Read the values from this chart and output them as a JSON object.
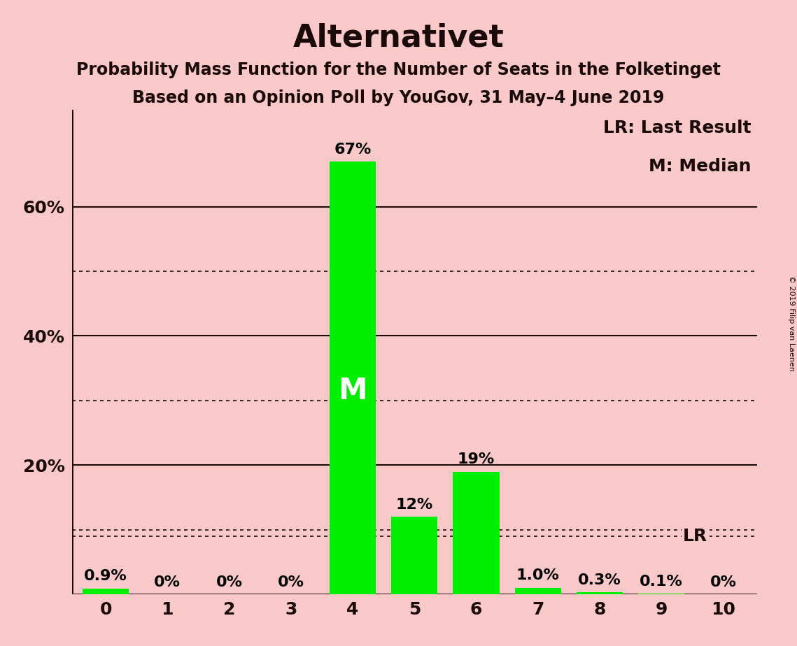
{
  "title": "Alternativet",
  "subtitle1": "Probability Mass Function for the Number of Seats in the Folketinget",
  "subtitle2": "Based on an Opinion Poll by YouGov, 31 May–4 June 2019",
  "watermark": "© 2019 Filip van Laenen",
  "categories": [
    0,
    1,
    2,
    3,
    4,
    5,
    6,
    7,
    8,
    9,
    10
  ],
  "values": [
    0.9,
    0.0,
    0.0,
    0.0,
    67.0,
    12.0,
    19.0,
    1.0,
    0.3,
    0.1,
    0.0
  ],
  "labels": [
    "0.9%",
    "0%",
    "0%",
    "0%",
    "67%",
    "12%",
    "19%",
    "1.0%",
    "0.3%",
    "0.1%",
    "0%"
  ],
  "bar_color": "#00EE00",
  "background_color": "#F9C8C8",
  "median_seat": 4,
  "median_label": "M",
  "lr_value": 9.0,
  "lr_label": "LR",
  "legend_lr": "LR: Last Result",
  "legend_m": "M: Median",
  "ylim": [
    0,
    75
  ],
  "solid_yticks": [
    0,
    20,
    40,
    60
  ],
  "dotted_yticks": [
    10,
    30,
    50
  ],
  "title_fontsize": 32,
  "subtitle_fontsize": 17,
  "label_fontsize": 16,
  "tick_fontsize": 18,
  "legend_fontsize": 18,
  "watermark_fontsize": 8
}
